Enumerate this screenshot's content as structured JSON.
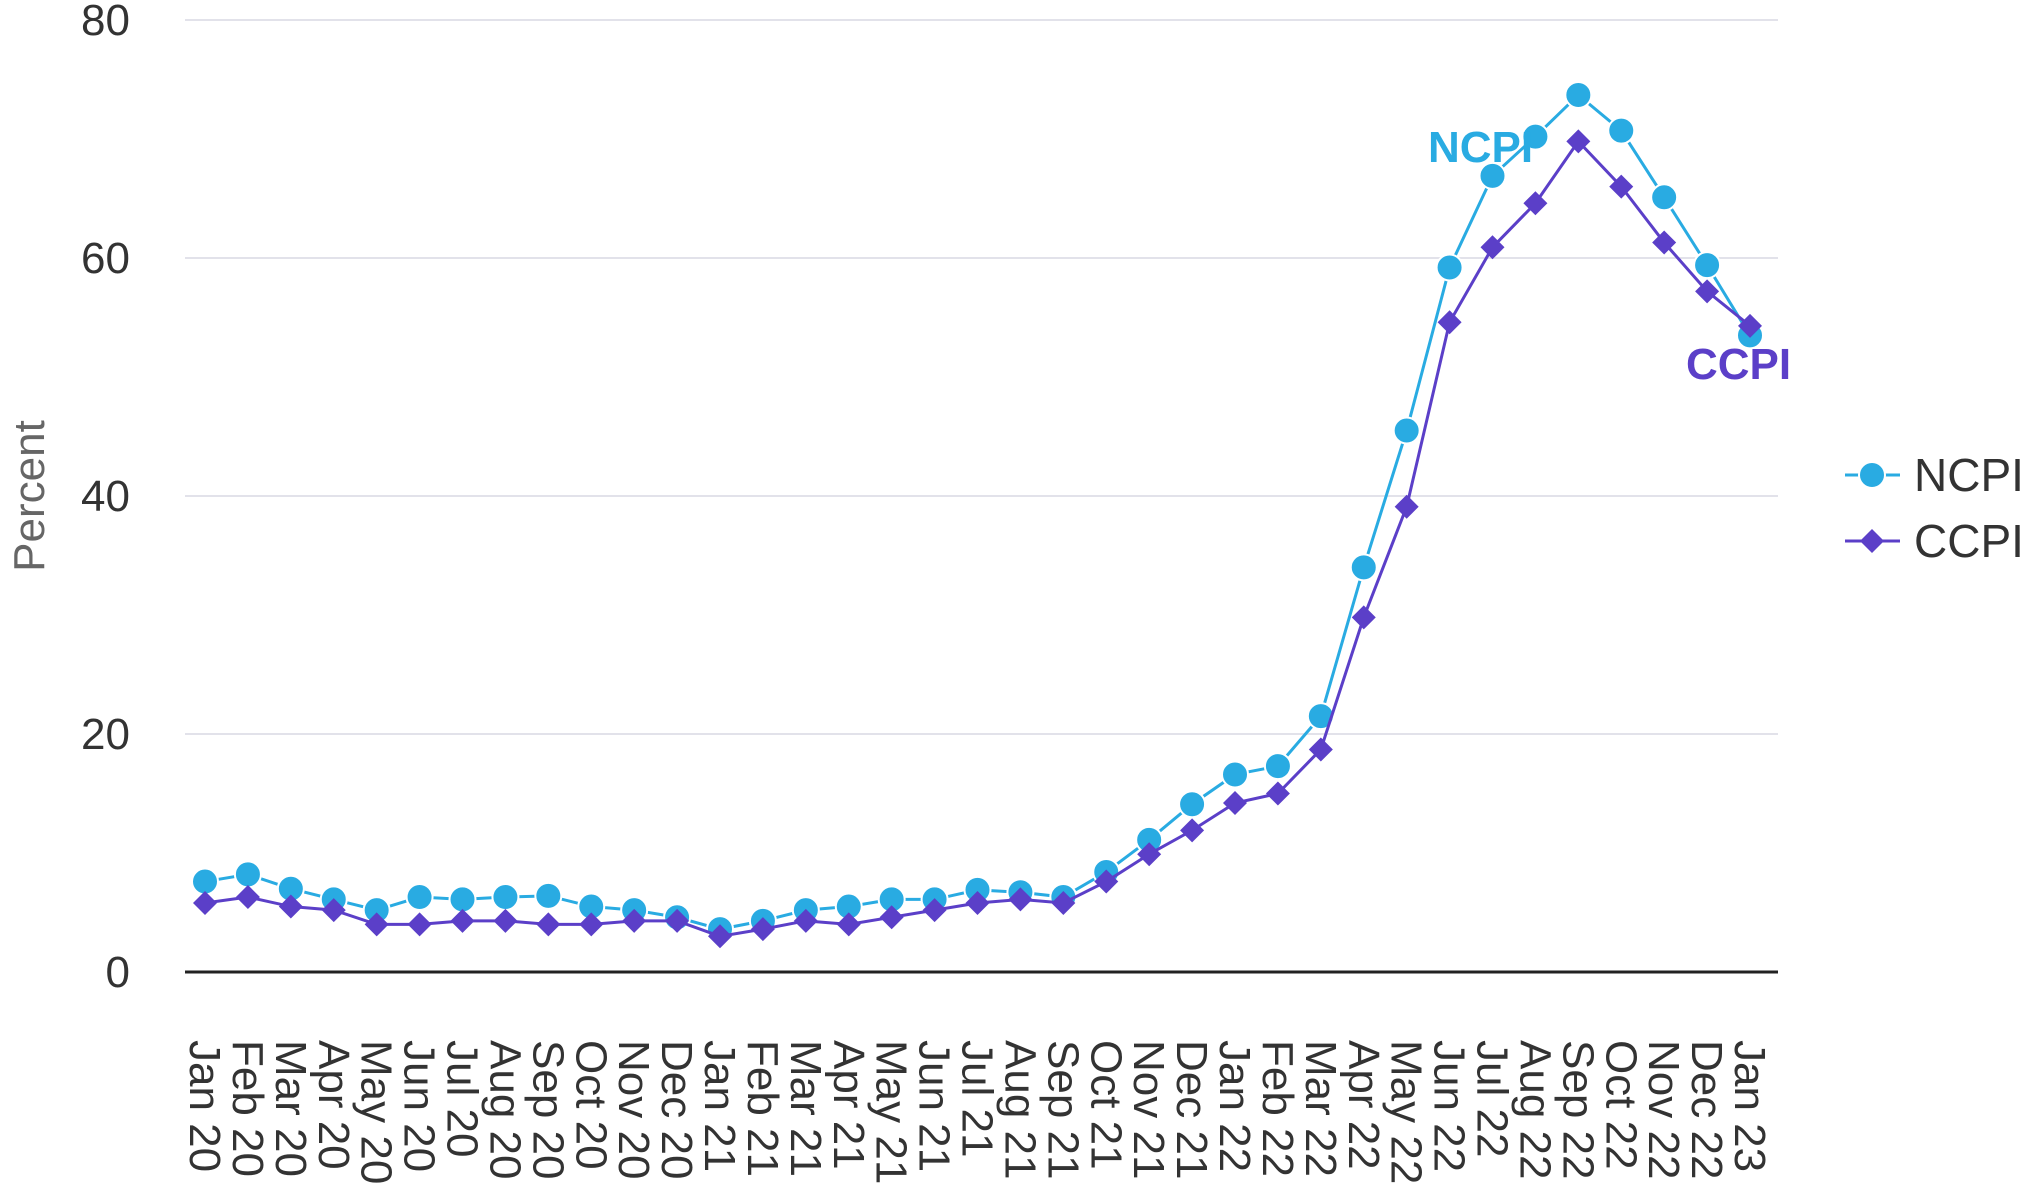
{
  "chart_data": {
    "type": "line",
    "title": "",
    "xlabel": "",
    "ylabel": "Percent",
    "ylim": [
      0,
      80
    ],
    "yticks": [
      0,
      20,
      40,
      60,
      80
    ],
    "grid": true,
    "legend_position": "right",
    "categories": [
      "Jan 20",
      "Feb 20",
      "Mar 20",
      "Apr 20",
      "May 20",
      "Jun 20",
      "Jul 20",
      "Aug 20",
      "Sep 20",
      "Oct 20",
      "Nov 20",
      "Dec 20",
      "Jan 21",
      "Feb 21",
      "Mar 21",
      "Apr 21",
      "May 21",
      "Jun 21",
      "Jul 21",
      "Aug 21",
      "Sep 21",
      "Oct 21",
      "Nov 21",
      "Dec 21",
      "Jan 22",
      "Feb 22",
      "Mar 22",
      "Apr 22",
      "May 22",
      "Jun 22",
      "Jul 22",
      "Aug 22",
      "Sep 22",
      "Oct 22",
      "Nov 22",
      "Dec 22",
      "Jan 23"
    ],
    "series": [
      {
        "name": "NCPI",
        "color": "#29abe2",
        "marker": "circle",
        "values": [
          7.6,
          8.2,
          7.0,
          6.1,
          5.2,
          6.3,
          6.1,
          6.3,
          6.4,
          5.5,
          5.2,
          4.6,
          3.6,
          4.3,
          5.2,
          5.5,
          6.1,
          6.1,
          6.9,
          6.7,
          6.3,
          8.4,
          11.1,
          14.1,
          16.6,
          17.3,
          21.5,
          34.0,
          45.5,
          59.2,
          66.9,
          70.2,
          73.7,
          70.7,
          65.1,
          59.4,
          53.5
        ]
      },
      {
        "name": "CCPI",
        "color": "#5b3fc8",
        "marker": "diamond",
        "values": [
          5.8,
          6.3,
          5.5,
          5.2,
          4.0,
          4.0,
          4.3,
          4.3,
          4.0,
          4.0,
          4.3,
          4.3,
          3.0,
          3.6,
          4.3,
          4.0,
          4.6,
          5.2,
          5.8,
          6.1,
          5.8,
          7.6,
          9.9,
          11.9,
          14.2,
          15.0,
          18.7,
          29.8,
          39.1,
          54.6,
          60.9,
          64.6,
          69.8,
          66.0,
          61.3,
          57.2,
          54.3
        ]
      }
    ]
  }
}
